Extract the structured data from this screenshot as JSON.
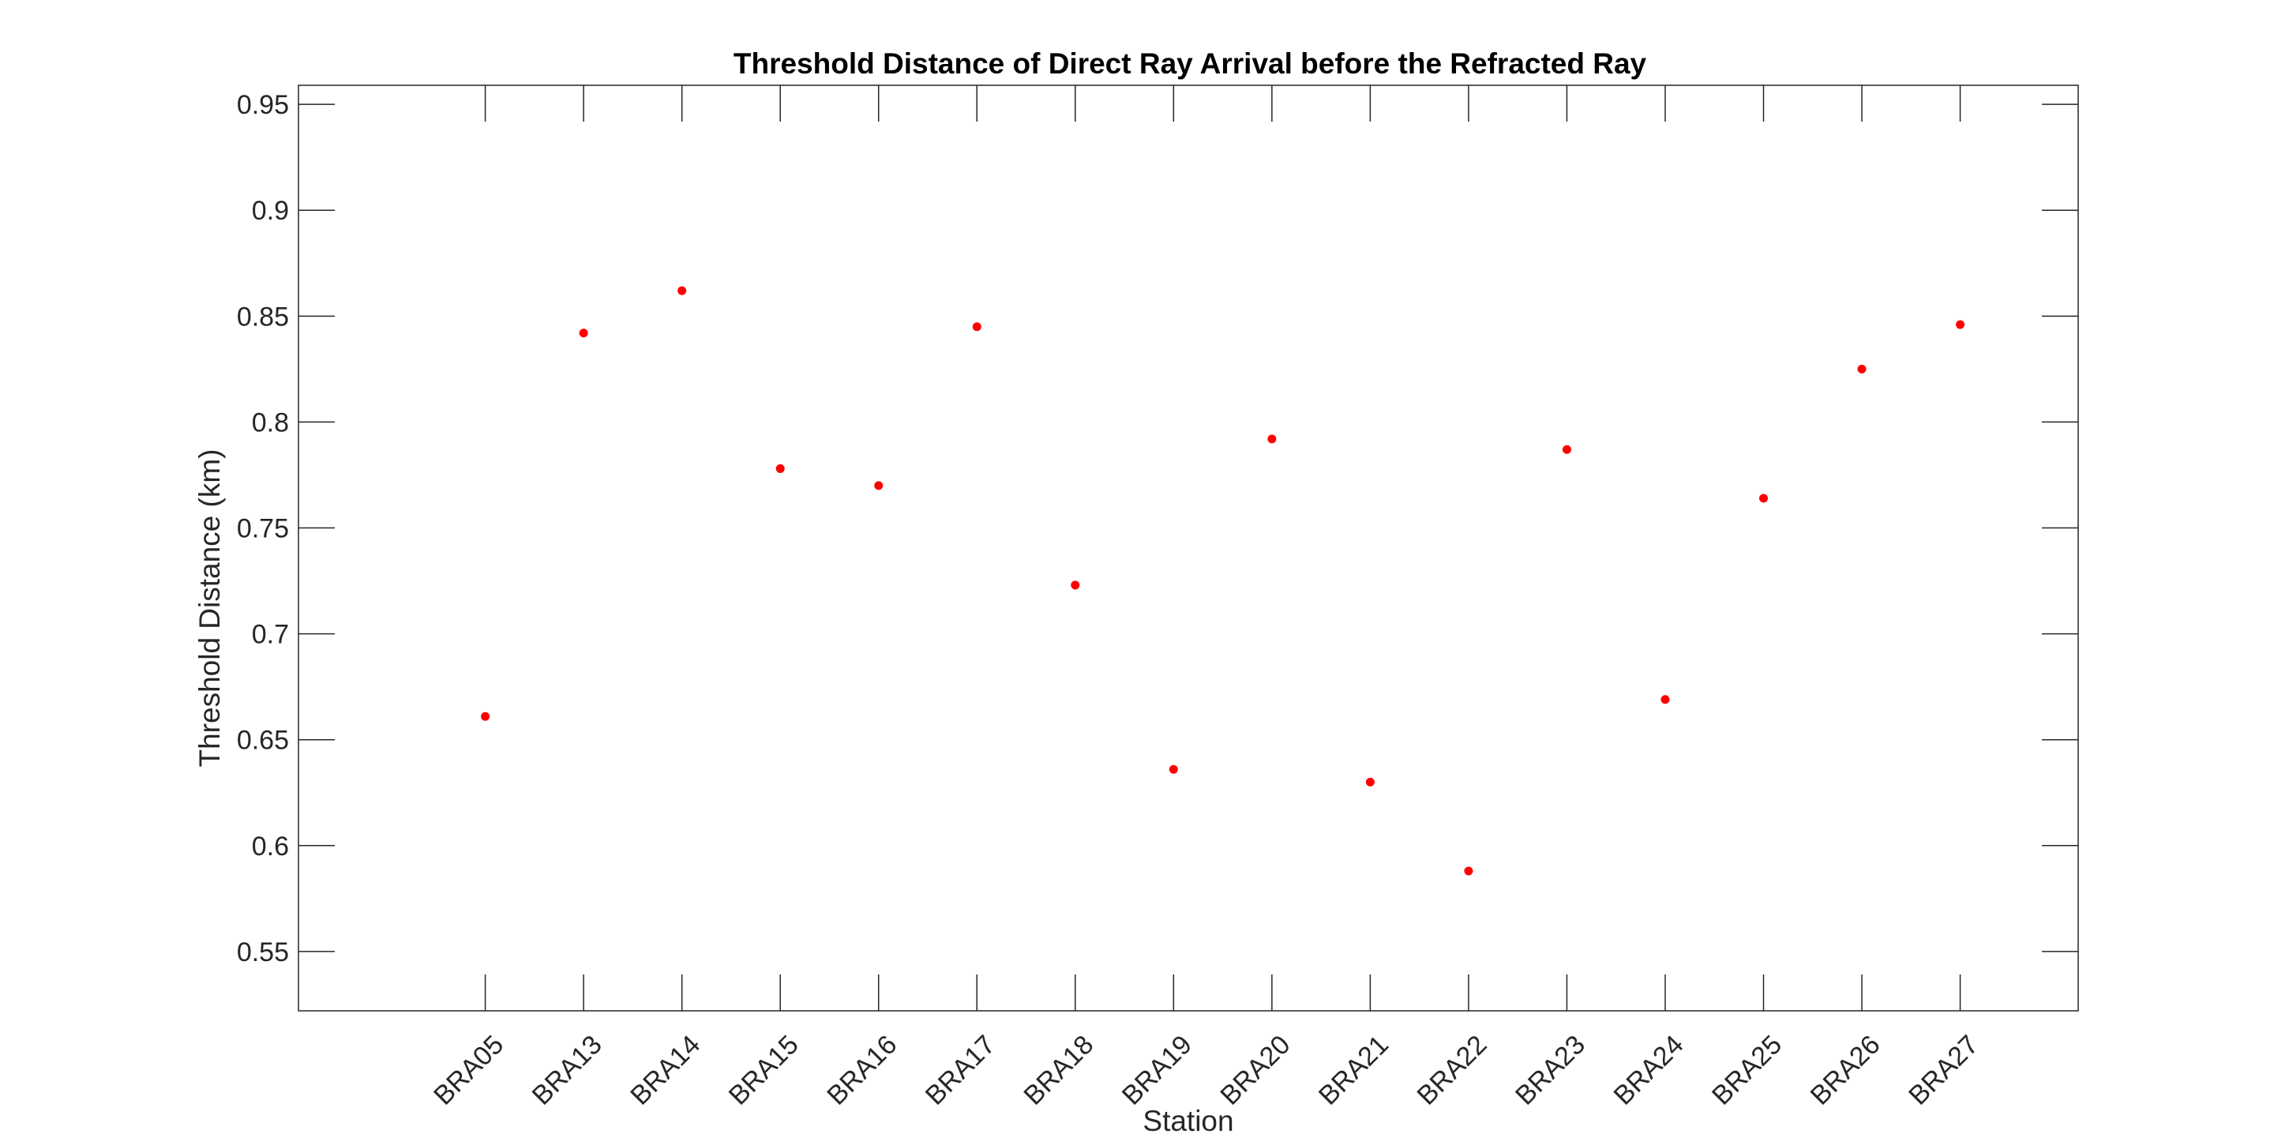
{
  "chart_data": {
    "type": "scatter",
    "title": "Threshold Distance of Direct Ray Arrival before the Refracted Ray",
    "xlabel": "Station",
    "ylabel": "Threshold Distance (km)",
    "categories": [
      "BRA05",
      "BRA13",
      "BRA14",
      "BRA15",
      "BRA16",
      "BRA17",
      "BRA18",
      "BRA19",
      "BRA20",
      "BRA21",
      "BRA22",
      "BRA23",
      "BRA24",
      "BRA25",
      "BRA26",
      "BRA27"
    ],
    "values": [
      0.661,
      0.842,
      0.862,
      0.778,
      0.77,
      0.845,
      0.723,
      0.636,
      0.792,
      0.63,
      0.588,
      0.787,
      0.669,
      0.764,
      0.825,
      0.846
    ],
    "xlim_index": [
      -1.9,
      16.2
    ],
    "ylim": [
      0.522,
      0.959
    ],
    "yticks": [
      0.55,
      0.6,
      0.65,
      0.7,
      0.75,
      0.8,
      0.85,
      0.9,
      0.95
    ],
    "ytick_labels": [
      "0.55",
      "0.6",
      "0.65",
      "0.7",
      "0.75",
      "0.8",
      "0.85",
      "0.9",
      "0.95"
    ],
    "marker_color": "#ff0000",
    "axes_color": "#262626",
    "grid": false,
    "legend": "none"
  }
}
